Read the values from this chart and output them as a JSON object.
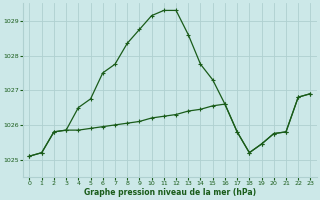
{
  "xlabel": "Graphe pression niveau de la mer (hPa)",
  "background_color": "#cce8e8",
  "grid_color": "#afd0d0",
  "line_color": "#1a5c1a",
  "ylim": [
    1024.5,
    1029.5
  ],
  "xlim": [
    -0.5,
    23.5
  ],
  "yticks": [
    1025,
    1026,
    1027,
    1028,
    1029
  ],
  "xticks": [
    0,
    1,
    2,
    3,
    4,
    5,
    6,
    7,
    8,
    9,
    10,
    11,
    12,
    13,
    14,
    15,
    16,
    17,
    18,
    19,
    20,
    21,
    22,
    23
  ],
  "line1_x": [
    0,
    1,
    2,
    3,
    4,
    5,
    6,
    7,
    8,
    9,
    10,
    11,
    12,
    13,
    14,
    15,
    16,
    17,
    18,
    19,
    20,
    21,
    22,
    23
  ],
  "line1_y": [
    1025.1,
    1025.2,
    1025.8,
    1025.85,
    1026.5,
    1026.75,
    1027.5,
    1027.75,
    1028.35,
    1028.75,
    1029.15,
    1029.3,
    1029.3,
    1028.6,
    1027.75,
    1027.3,
    1026.6,
    1025.8,
    1025.2,
    1025.45,
    1025.75,
    1025.8,
    1026.8,
    1026.9
  ],
  "line2_x": [
    0,
    1,
    2,
    3,
    4,
    5,
    6,
    7,
    8,
    9,
    10,
    11,
    12,
    13,
    14,
    15,
    16,
    17,
    18,
    19,
    20,
    21,
    22,
    23
  ],
  "line2_y": [
    1025.1,
    1025.2,
    1025.8,
    1025.85,
    1025.85,
    1025.9,
    1025.95,
    1026.0,
    1026.05,
    1026.1,
    1026.2,
    1026.25,
    1026.3,
    1026.4,
    1026.45,
    1026.55,
    1026.6,
    1025.8,
    1025.2,
    1025.45,
    1025.75,
    1025.8,
    1026.8,
    1026.9
  ]
}
